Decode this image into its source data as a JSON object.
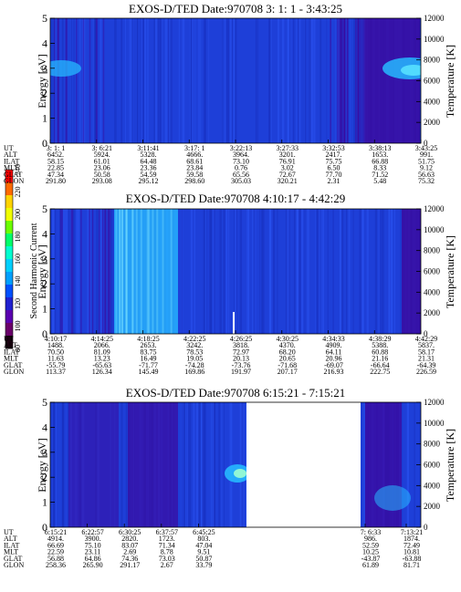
{
  "colors": {
    "background": "#1e3fd8",
    "purple": "#3a0aa0",
    "cyan": "#26b8ff",
    "light_cyan": "#56e0ff",
    "line": "#000000",
    "white": "#ffffff"
  },
  "colorbar": {
    "label": "Second Harmonic Current",
    "ticks": [
      "240",
      "220",
      "200",
      "180",
      "160",
      "140",
      "120",
      "100",
      "80"
    ],
    "values": [
      240,
      220,
      200,
      180,
      160,
      140,
      120,
      100,
      80
    ],
    "colors": [
      "#ff0000",
      "#ff6a00",
      "#ffd400",
      "#f0ff00",
      "#6cff00",
      "#00ff6a",
      "#00ffd0",
      "#00d0ff",
      "#00a0ff",
      "#0050ff",
      "#2020d0",
      "#5a00b0",
      "#6a006a",
      "#1a0010"
    ]
  },
  "chart_data": [
    {
      "type": "heatmap",
      "title": "EXOS-D/TED   Date:970708   3: 1: 1 - 3:43:25",
      "ylabel": "Energy [eV]",
      "y2label": "Temperature [K]",
      "ylim": [
        0,
        5
      ],
      "yticks": [
        "0",
        "1",
        "2",
        "3",
        "4",
        "5"
      ],
      "y2lim": [
        0,
        12000
      ],
      "y2ticks": [
        "0",
        "2000",
        "4000",
        "6000",
        "8000",
        "10000",
        "12000"
      ],
      "row_labels": [
        "UT",
        "ALT",
        "ILAT",
        "MLT",
        "GLAT",
        "GLON"
      ],
      "columns": [
        [
          "3: 1: 1",
          "6452.",
          "58.15",
          "22.85",
          "47.34",
          "291.80"
        ],
        [
          "3: 6:21",
          "5924.",
          "61.01",
          "23.06",
          "50.58",
          "293.08"
        ],
        [
          "3:11:41",
          "5328.",
          "64.48",
          "23.36",
          "54.59",
          "295.12"
        ],
        [
          "3:17: 1",
          "4666.",
          "68.61",
          "23.84",
          "59.58",
          "298.60"
        ],
        [
          "3:22:13",
          "3964.",
          "73.10",
          "0.76",
          "65.56",
          "305.03"
        ],
        [
          "3:27:33",
          "3201.",
          "76.91",
          "3.02",
          "72.67",
          "320.21"
        ],
        [
          "3:32:53",
          "2417.",
          "75.75",
          "6.50",
          "77.70",
          "2.31"
        ],
        [
          "3:38:13",
          "1653.",
          "66.88",
          "8.33",
          "71.52",
          "5.48"
        ],
        [
          "3:43:25",
          "991.",
          "51.75",
          "9.12",
          "56.63",
          "75.32"
        ]
      ]
    },
    {
      "type": "heatmap",
      "title": "EXOS-D/TED   Date:970708   4:10:17 - 4:42:29",
      "ylabel": "Energy [eV]",
      "y2label": "Temperature [K]",
      "ylim": [
        0,
        5
      ],
      "yticks": [
        "0",
        "1",
        "2",
        "3",
        "4",
        "5"
      ],
      "y2lim": [
        0,
        12000
      ],
      "y2ticks": [
        "0",
        "2000",
        "4000",
        "6000",
        "8000",
        "10000",
        "12000"
      ],
      "row_labels": [
        "UT",
        "ALT",
        "ILAT",
        "MLT",
        "GLAT",
        "GLON"
      ],
      "columns": [
        [
          "4:10:17",
          "1488.",
          "70.50",
          "11.63",
          "-55.79",
          "113.37"
        ],
        [
          "4:14:25",
          "2066.",
          "81.09",
          "13.23",
          "-65.63",
          "126.34"
        ],
        [
          "4:18:25",
          "2653.",
          "83.75",
          "16.49",
          "-71.77",
          "145.49"
        ],
        [
          "4:22:25",
          "3242.",
          "78.53",
          "19.05",
          "-74.28",
          "169.86"
        ],
        [
          "4:26:25",
          "3818.",
          "72.97",
          "20.13",
          "-73.76",
          "191.97"
        ],
        [
          "4:30:25",
          "4370.",
          "68.20",
          "20.65",
          "-71.68",
          "207.17"
        ],
        [
          "4:34:33",
          "4909.",
          "64.11",
          "20.96",
          "-69.07",
          "216.93"
        ],
        [
          "4:38:29",
          "5388.",
          "60.88",
          "21.16",
          "-66.64",
          "222.75"
        ],
        [
          "4:42:29",
          "5837.",
          "58.17",
          "21.31",
          "-64.39",
          "226.59"
        ]
      ]
    },
    {
      "type": "heatmap",
      "title": "EXOS-D/TED   Date:970708   6:15:21 - 7:15:21",
      "ylabel": "Energy [eV]",
      "y2label": "Temperature [K]",
      "ylim": [
        0,
        5
      ],
      "yticks": [
        "0",
        "1",
        "2",
        "3",
        "4",
        "5"
      ],
      "y2lim": [
        0,
        12000
      ],
      "y2ticks": [
        "0",
        "2000",
        "4000",
        "6000",
        "8000",
        "10000",
        "12000"
      ],
      "row_labels": [
        "UT",
        "ALT",
        "ILAT",
        "MLT",
        "GLAT",
        "GLON"
      ],
      "columns": [
        [
          "6:15:21",
          "4914.",
          "66.69",
          "22.59",
          "56.88",
          "258.36"
        ],
        [
          "6:22:57",
          "3900.",
          "75.10",
          "23.11",
          "64.86",
          "265.90"
        ],
        [
          "6:30:25",
          "2820.",
          "83.07",
          "2.69",
          "74.36",
          "291.17"
        ],
        [
          "6:37:57",
          "1723.",
          "71.34",
          "8.78",
          "73.03",
          "2.67"
        ],
        [
          "6:45:25",
          "803.",
          "47.04",
          "9.51",
          "50.87",
          "33.79"
        ],
        [
          "7: 6:33",
          "986.",
          "52.59",
          "10.25",
          "-43.87",
          "61.89"
        ],
        [
          "7:13:21",
          "1874.",
          "72.49",
          "10.81",
          "-63.88",
          "81.71"
        ]
      ]
    }
  ]
}
